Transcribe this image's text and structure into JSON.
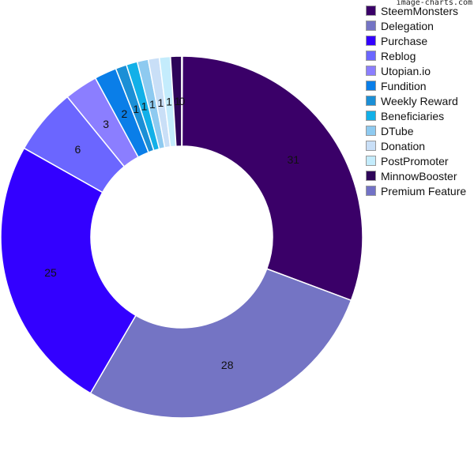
{
  "watermark": "image-charts.com",
  "chart_data": {
    "type": "doughnut",
    "title": "",
    "categories": [
      "SteemMonsters",
      "Delegation",
      "Purchase",
      "Reblog",
      "Utopian.io",
      "Fundition",
      "Weekly Reward",
      "Beneficiaries",
      "DTube",
      "Donation",
      "PostPromoter",
      "MinnowBooster",
      "Premium Feature"
    ],
    "values": [
      31,
      28,
      25,
      6,
      3,
      2,
      1,
      1,
      1,
      1,
      1,
      1,
      0
    ],
    "colors": [
      "#3a0068",
      "#7474c4",
      "#3300ff",
      "#6b66ff",
      "#8b7eff",
      "#0a7ee8",
      "#1b8fd6",
      "#12b0e8",
      "#8ecaf0",
      "#c9dff7",
      "#c4ecfc",
      "#2e0559",
      "#7272c6"
    ],
    "legend_position": "right"
  }
}
